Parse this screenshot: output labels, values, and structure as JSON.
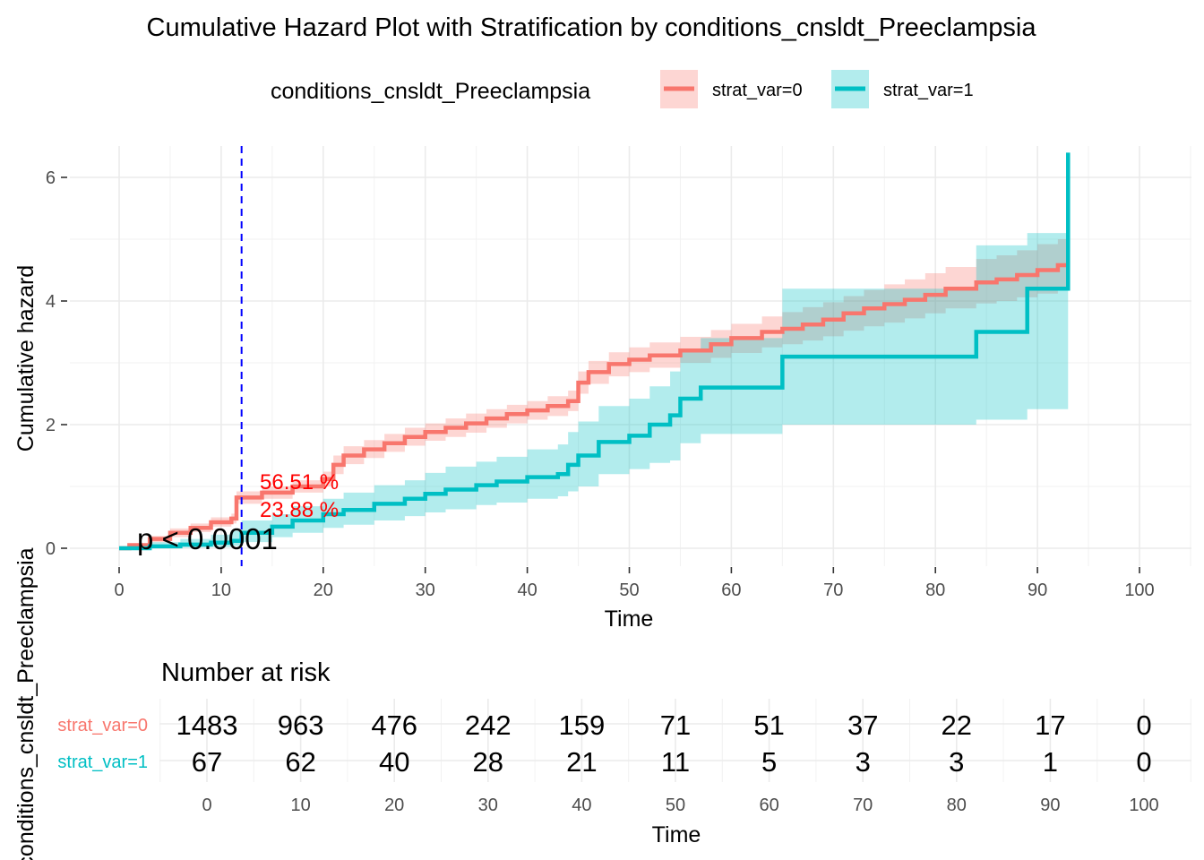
{
  "chart_data": [
    {
      "type": "line",
      "subtype": "step",
      "title": "Cumulative Hazard Plot with Stratification by conditions_cnsldt_Preeclampsia",
      "xlabel": "Time",
      "ylabel": "Cumulative hazard",
      "xlim": [
        0,
        100
      ],
      "ylim": [
        0,
        6
      ],
      "x_ticks": [
        0,
        10,
        20,
        30,
        40,
        50,
        60,
        70,
        80,
        90,
        100
      ],
      "y_ticks": [
        0,
        2,
        4,
        6
      ],
      "grid": true,
      "legend": {
        "title": "conditions_cnsldt_Preeclampsia",
        "position": "top",
        "entries": [
          {
            "label": "strat_var=0",
            "color": "#F8766D"
          },
          {
            "label": "strat_var=1",
            "color": "#00BFC4"
          }
        ]
      },
      "series": [
        {
          "name": "strat_var=0",
          "color": "#F8766D",
          "x": [
            0,
            1,
            3,
            5,
            7,
            9,
            11,
            11.5,
            14,
            17,
            20,
            21,
            22,
            24,
            26,
            28,
            30,
            32,
            34,
            36,
            38,
            40,
            42,
            44,
            45,
            46,
            48,
            50,
            52,
            55,
            58,
            60,
            63,
            65,
            67,
            69,
            71,
            73,
            75,
            77,
            79,
            81,
            84,
            86,
            88,
            90,
            92,
            93
          ],
          "y": [
            0,
            0.05,
            0.15,
            0.25,
            0.33,
            0.42,
            0.48,
            0.82,
            0.9,
            1.0,
            1.12,
            1.35,
            1.5,
            1.6,
            1.7,
            1.8,
            1.88,
            1.95,
            2.02,
            2.1,
            2.17,
            2.23,
            2.3,
            2.38,
            2.68,
            2.85,
            2.98,
            3.05,
            3.12,
            3.2,
            3.3,
            3.4,
            3.5,
            3.55,
            3.62,
            3.7,
            3.8,
            3.88,
            3.95,
            4.02,
            4.1,
            4.2,
            4.3,
            4.35,
            4.42,
            4.5,
            4.58,
            4.65
          ],
          "ci_lower": [
            0,
            0.02,
            0.1,
            0.18,
            0.26,
            0.35,
            0.4,
            0.72,
            0.8,
            0.9,
            1.0,
            1.2,
            1.36,
            1.46,
            1.56,
            1.66,
            1.74,
            1.8,
            1.87,
            1.95,
            2.02,
            2.08,
            2.14,
            2.22,
            2.5,
            2.66,
            2.78,
            2.85,
            2.92,
            3.0,
            3.08,
            3.16,
            3.25,
            3.3,
            3.36,
            3.43,
            3.52,
            3.59,
            3.65,
            3.72,
            3.8,
            3.88,
            3.96,
            4.0,
            4.06,
            4.12,
            4.18,
            4.22
          ],
          "ci_upper": [
            0,
            0.08,
            0.2,
            0.32,
            0.4,
            0.5,
            0.56,
            0.92,
            1.0,
            1.1,
            1.24,
            1.5,
            1.65,
            1.75,
            1.85,
            1.95,
            2.02,
            2.1,
            2.18,
            2.25,
            2.32,
            2.38,
            2.46,
            2.55,
            2.86,
            3.03,
            3.17,
            3.25,
            3.33,
            3.42,
            3.53,
            3.63,
            3.75,
            3.82,
            3.9,
            3.98,
            4.08,
            4.18,
            4.27,
            4.35,
            4.45,
            4.55,
            4.68,
            4.74,
            4.82,
            4.92,
            5.0,
            5.08
          ]
        },
        {
          "name": "strat_var=1",
          "color": "#00BFC4",
          "x": [
            0,
            3,
            6,
            9,
            11,
            12,
            15,
            17,
            20,
            22,
            25,
            28,
            30,
            32,
            35,
            37,
            40,
            43,
            44,
            45,
            47,
            50,
            52,
            54,
            55,
            57,
            65,
            84,
            89,
            93
          ],
          "y": [
            0,
            0.03,
            0.06,
            0.09,
            0.12,
            0.25,
            0.35,
            0.45,
            0.55,
            0.62,
            0.72,
            0.8,
            0.88,
            0.95,
            1.02,
            1.08,
            1.15,
            1.2,
            1.35,
            1.5,
            1.72,
            1.82,
            2.0,
            2.15,
            2.42,
            2.6,
            3.1,
            3.5,
            4.2,
            6.4
          ],
          "ci_lower": [
            0,
            0.0,
            0.01,
            0.02,
            0.04,
            0.1,
            0.18,
            0.25,
            0.33,
            0.38,
            0.45,
            0.52,
            0.58,
            0.63,
            0.7,
            0.74,
            0.8,
            0.84,
            0.92,
            1.0,
            1.2,
            1.28,
            1.38,
            1.42,
            1.7,
            1.85,
            2.0,
            2.08,
            2.25,
            2.25
          ],
          "ci_upper": [
            0,
            0.1,
            0.15,
            0.22,
            0.28,
            0.45,
            0.55,
            0.68,
            0.8,
            0.9,
            1.02,
            1.1,
            1.22,
            1.32,
            1.4,
            1.48,
            1.6,
            1.68,
            1.88,
            2.05,
            2.3,
            2.42,
            2.62,
            2.86,
            3.2,
            3.4,
            4.2,
            4.9,
            5.1,
            5.1
          ]
        }
      ],
      "annotations": [
        {
          "text": "56.51 %",
          "color": "#FF0000",
          "x": 18,
          "y": 1.08
        },
        {
          "text": "23.88 %",
          "color": "#FF0000",
          "x": 18,
          "y": 0.65
        },
        {
          "text": "p < 0.0001",
          "color": "#000000",
          "x": 9,
          "y": 0.18
        }
      ],
      "reference_line": {
        "type": "vertical",
        "x": 12,
        "style": "dashed",
        "color": "#0000FF"
      }
    },
    {
      "type": "table",
      "title": "Number at risk",
      "xlabel": "Time",
      "ylabel": "conditions_cnsldt_Preeclampsia",
      "x_ticks": [
        0,
        10,
        20,
        30,
        40,
        50,
        60,
        70,
        80,
        90,
        100
      ],
      "rows": [
        {
          "label": "strat_var=0",
          "color": "#F8766D",
          "values": [
            1483,
            963,
            476,
            242,
            159,
            71,
            51,
            37,
            22,
            17,
            0
          ]
        },
        {
          "label": "strat_var=1",
          "color": "#00BFC4",
          "values": [
            67,
            62,
            40,
            28,
            21,
            11,
            5,
            3,
            3,
            1,
            0
          ]
        }
      ]
    }
  ]
}
